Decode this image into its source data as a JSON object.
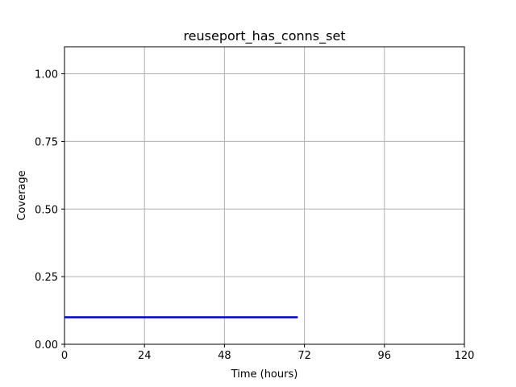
{
  "chart_data": {
    "type": "line",
    "title": "reuseport_has_conns_set",
    "xlabel": "Time (hours)",
    "ylabel": "Coverage",
    "xlim": [
      0,
      120
    ],
    "ylim": [
      0,
      1.1
    ],
    "x_ticks": [
      0,
      24,
      48,
      72,
      96,
      120
    ],
    "y_ticks": [
      0.0,
      0.25,
      0.5,
      0.75,
      1.0
    ],
    "x_tick_labels": [
      "0",
      "24",
      "48",
      "72",
      "96",
      "120"
    ],
    "y_tick_labels": [
      "0.00",
      "0.25",
      "0.50",
      "0.75",
      "1.00"
    ],
    "grid": true,
    "series": [
      {
        "color": "#0000cc",
        "x": [
          0,
          70
        ],
        "y": [
          0.1,
          0.1
        ]
      }
    ]
  }
}
